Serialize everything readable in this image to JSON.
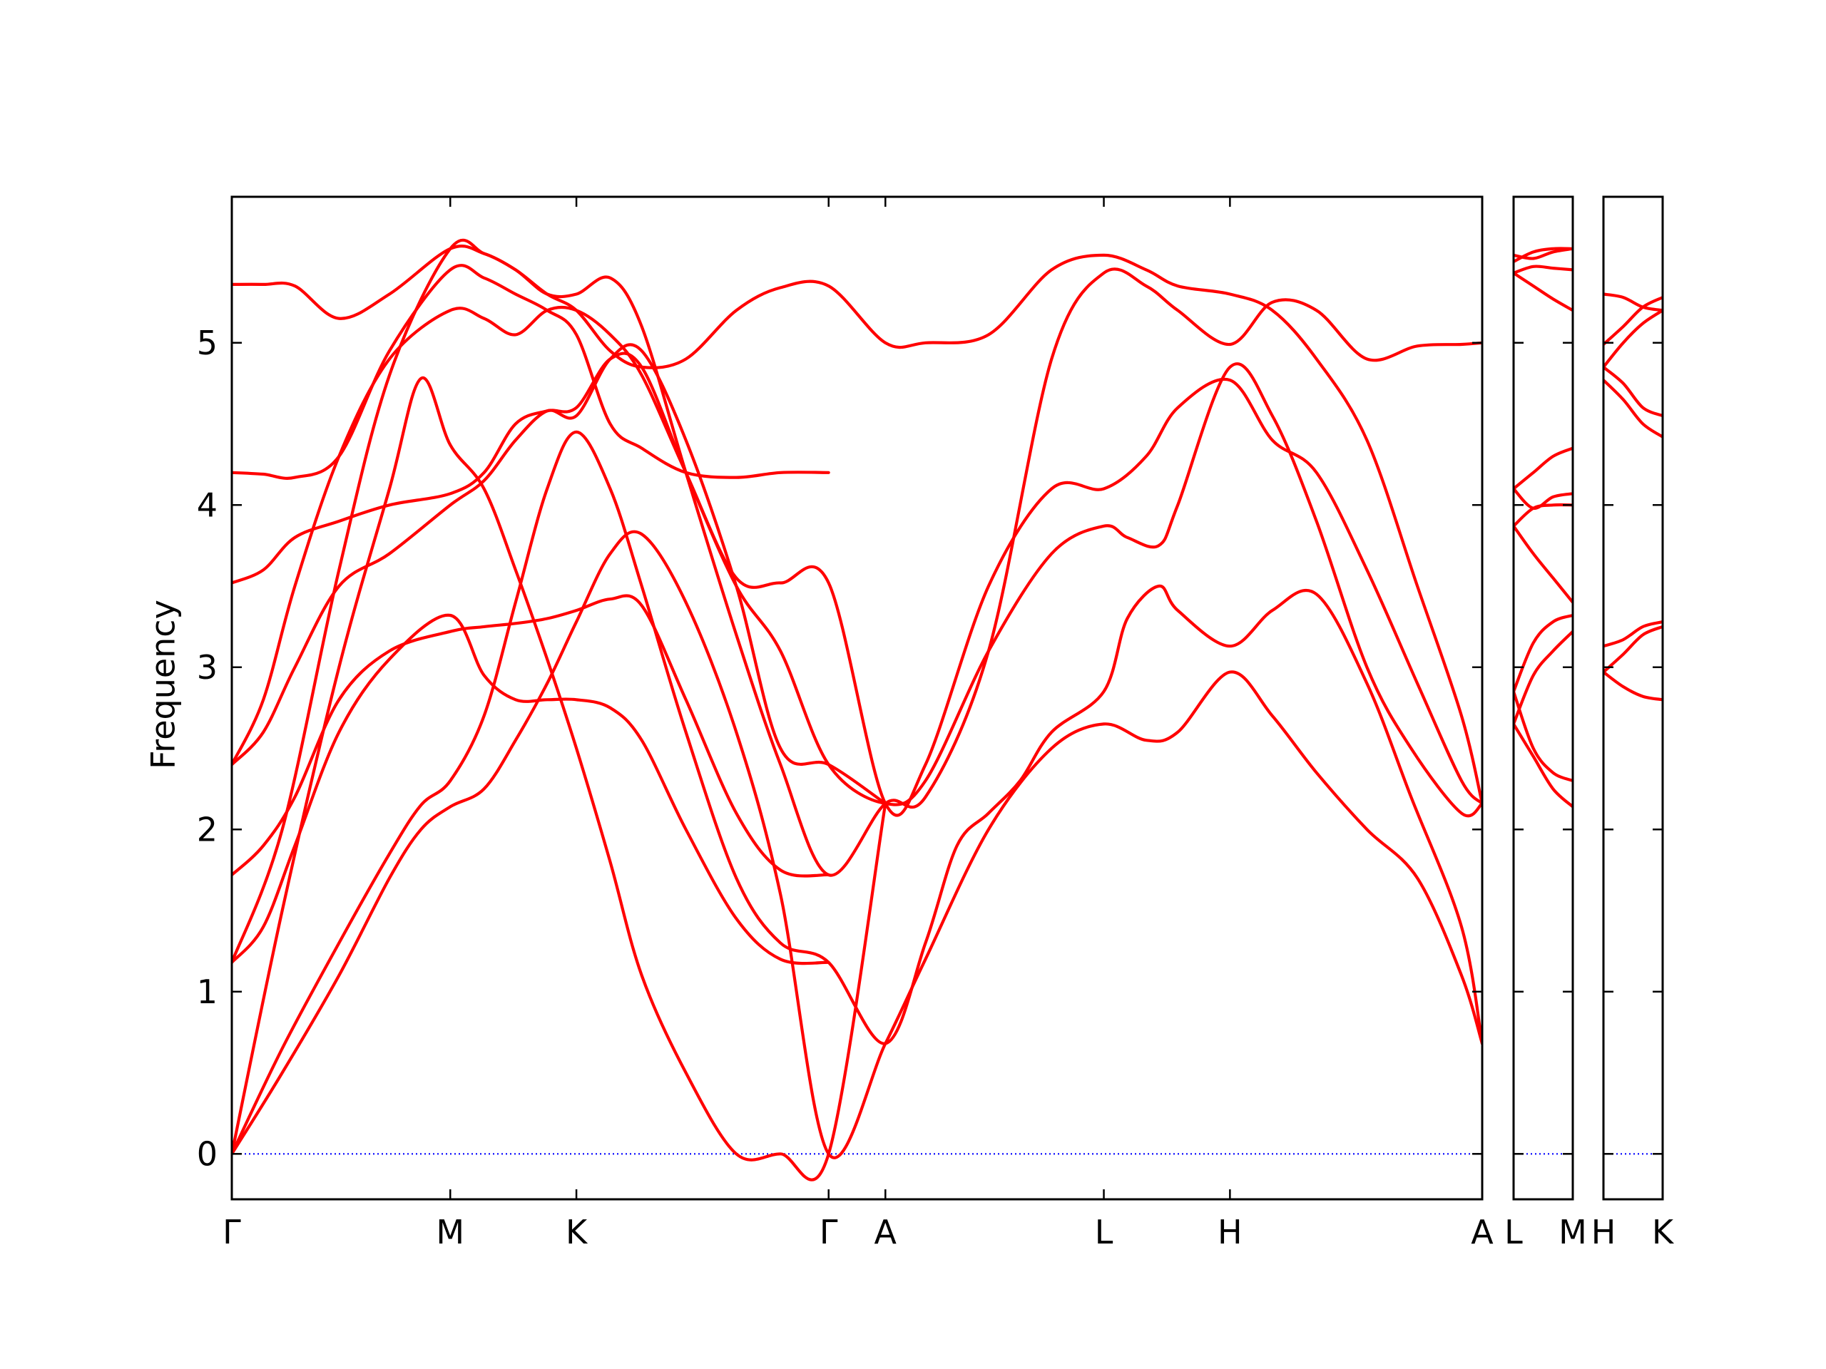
{
  "chart_data": {
    "type": "line",
    "ylabel": "Frequency",
    "ylim": [
      -0.28,
      5.9
    ],
    "y_ticks": [
      "0",
      "1",
      "2",
      "3",
      "4",
      "5"
    ],
    "y_tick_values": [
      0,
      1,
      2,
      3,
      4,
      5
    ],
    "grid": false,
    "legend": "none",
    "colors": {
      "bands": "#ff0000",
      "zero_line": "#0000ff",
      "axes": "#000000"
    },
    "panels": [
      {
        "segments": [
          "Γ-M",
          "M-K",
          "K-Γ",
          "Γ-A",
          "A-L",
          "L-H",
          "H-A"
        ],
        "x_ticks": [
          {
            "label": "Γ",
            "x": 0.0
          },
          {
            "label": "M",
            "x": 0.3464
          },
          {
            "label": "K",
            "x": 0.5464
          },
          {
            "label": "Γ",
            "x": 0.9464
          },
          {
            "label": "A",
            "x": 1.0364
          },
          {
            "label": "L",
            "x": 1.3828
          },
          {
            "label": "H",
            "x": 1.5828
          },
          {
            "label": "A",
            "x": 1.9828
          }
        ],
        "xlim": [
          0.0,
          1.9828
        ],
        "series": [
          {
            "x": [
              0.0,
              0.08,
              0.17,
              0.25,
              0.3,
              0.3464,
              0.4,
              0.45,
              0.5,
              0.5464,
              0.6,
              0.65,
              0.72,
              0.8,
              0.87,
              0.9464,
              1.0364,
              1.1,
              1.2,
              1.3,
              1.3828,
              1.45,
              1.5,
              1.5828,
              1.65,
              1.72,
              1.8,
              1.88,
              1.95,
              1.9828
            ],
            "y": [
              0.0,
              0.5,
              1.1,
              1.7,
              2.0,
              2.14,
              2.25,
              2.55,
              2.9,
              3.28,
              3.7,
              3.82,
              3.4,
              2.6,
              1.6,
              0.0,
              0.68,
              1.2,
              2.0,
              2.5,
              2.65,
              2.55,
              2.6,
              2.97,
              2.7,
              2.35,
              2.0,
              1.7,
              1.1,
              0.68
            ]
          },
          {
            "x": [
              0.0,
              0.08,
              0.17,
              0.25,
              0.3,
              0.3464,
              0.4,
              0.45,
              0.5,
              0.5464,
              0.6,
              0.65,
              0.72,
              0.8,
              0.87,
              0.9464,
              1.0364,
              1.1,
              1.15,
              1.2,
              1.25,
              1.3,
              1.3828,
              1.42,
              1.47,
              1.5,
              1.5828,
              1.65,
              1.72,
              1.8,
              1.87,
              1.95,
              1.9828
            ],
            "y": [
              0.0,
              0.65,
              1.3,
              1.85,
              2.15,
              2.3,
              2.7,
              3.4,
              4.1,
              4.45,
              4.1,
              3.5,
              2.6,
              1.7,
              1.3,
              1.18,
              0.68,
              1.3,
              1.9,
              2.1,
              2.3,
              2.6,
              2.85,
              3.3,
              3.5,
              3.35,
              3.13,
              3.35,
              3.45,
              2.9,
              2.2,
              1.4,
              0.68
            ]
          },
          {
            "x": [
              0.0,
              0.08,
              0.17,
              0.25,
              0.3,
              0.3464,
              0.4,
              0.45,
              0.5,
              0.5464,
              0.6,
              0.65,
              0.72,
              0.8,
              0.87,
              0.9464,
              1.0364
            ],
            "y": [
              0.0,
              1.5,
              3.0,
              4.1,
              4.78,
              4.37,
              4.1,
              3.6,
              3.05,
              2.5,
              1.8,
              1.1,
              0.5,
              0.0,
              0.0,
              0.0,
              2.16
            ]
          },
          {
            "x": [
              0.0,
              0.05,
              0.1,
              0.17,
              0.25,
              0.3464,
              0.4,
              0.45,
              0.5,
              0.5464,
              0.6,
              0.65,
              0.72,
              0.8,
              0.87,
              0.9464
            ],
            "y": [
              1.18,
              1.4,
              1.9,
              2.6,
              3.05,
              3.32,
              2.95,
              2.8,
              2.8,
              2.8,
              2.75,
              2.55,
              2.0,
              1.45,
              1.2,
              1.18
            ]
          },
          {
            "x": [
              0.0,
              0.05,
              0.1,
              0.17,
              0.25,
              0.3464,
              0.4,
              0.45,
              0.5,
              0.5464,
              0.6,
              0.65,
              0.72,
              0.8,
              0.87,
              0.9464
            ],
            "y": [
              1.72,
              1.9,
              2.2,
              2.8,
              3.1,
              3.22,
              3.25,
              3.27,
              3.3,
              3.35,
              3.42,
              3.38,
              2.8,
              2.1,
              1.75,
              1.72
            ]
          },
          {
            "x": [
              0.0,
              0.05,
              0.1,
              0.17,
              0.25,
              0.3464,
              0.4,
              0.45,
              0.5,
              0.5464,
              0.6,
              0.65,
              0.72,
              0.8,
              0.87,
              0.9464,
              1.0364
            ],
            "y": [
              2.4,
              2.6,
              3.0,
              3.5,
              3.7,
              4.0,
              4.15,
              4.4,
              4.58,
              4.55,
              4.9,
              4.95,
              4.4,
              3.5,
              2.5,
              2.4,
              2.16
            ]
          },
          {
            "x": [
              0.0,
              0.05,
              0.1,
              0.17,
              0.25,
              0.3464,
              0.4,
              0.45,
              0.5,
              0.5464,
              0.6,
              0.65,
              0.72,
              0.8,
              0.87,
              0.9464,
              1.0364,
              1.1,
              1.2,
              1.3,
              1.3828,
              1.42,
              1.47,
              1.5,
              1.5828,
              1.65,
              1.72,
              1.8,
              1.87,
              1.95,
              1.9828
            ],
            "y": [
              3.52,
              3.6,
              3.8,
              3.9,
              4.0,
              4.07,
              4.2,
              4.5,
              4.58,
              4.6,
              4.9,
              4.85,
              4.2,
              3.5,
              3.1,
              2.4,
              2.16,
              2.3,
              3.1,
              3.7,
              3.87,
              3.8,
              3.75,
              4.0,
              4.85,
              4.55,
              3.9,
              3.0,
              2.5,
              2.1,
              2.16
            ]
          },
          {
            "x": [
              0.0,
              0.05,
              0.1,
              0.17,
              0.25,
              0.3464,
              0.4,
              0.45,
              0.5,
              0.5464,
              0.6,
              0.65,
              0.72,
              0.8,
              0.87,
              0.9464,
              1.0364,
              1.1,
              1.2,
              1.3,
              1.3828,
              1.45,
              1.5,
              1.5828,
              1.65,
              1.72,
              1.8,
              1.88,
              1.95,
              1.9828
            ],
            "y": [
              2.4,
              2.8,
              3.5,
              4.3,
              4.9,
              5.2,
              5.15,
              5.05,
              5.2,
              5.2,
              5.05,
              4.8,
              4.2,
              3.55,
              3.52,
              3.52,
              2.16,
              2.4,
              3.5,
              4.1,
              4.1,
              4.3,
              4.6,
              4.77,
              4.4,
              4.2,
              3.6,
              2.9,
              2.3,
              2.16
            ]
          },
          {
            "x": [
              0.0,
              0.05,
              0.1,
              0.17,
              0.25,
              0.3464,
              0.4,
              0.45,
              0.5,
              0.5464,
              0.6,
              0.65,
              0.72,
              0.8,
              0.87,
              0.9464
            ],
            "y": [
              4.2,
              4.19,
              4.17,
              4.3,
              4.95,
              5.45,
              5.4,
              5.3,
              5.2,
              5.05,
              4.5,
              4.35,
              4.2,
              4.17,
              4.2,
              4.2
            ]
          },
          {
            "x": [
              0.0,
              0.05,
              0.1,
              0.17,
              0.25,
              0.3464,
              0.4,
              0.45,
              0.5,
              0.5464,
              0.6,
              0.65,
              0.72,
              0.8,
              0.87,
              0.9464,
              1.0364,
              1.1,
              1.2,
              1.3,
              1.3828,
              1.45,
              1.5,
              1.5828,
              1.65,
              1.72,
              1.8,
              1.88,
              1.95,
              1.9828
            ],
            "y": [
              5.36,
              5.36,
              5.35,
              5.15,
              5.3,
              5.58,
              5.55,
              5.45,
              5.3,
              5.2,
              4.95,
              4.85,
              4.9,
              5.2,
              5.34,
              5.35,
              5.0,
              5.0,
              5.05,
              5.45,
              5.54,
              5.45,
              5.35,
              5.3,
              5.2,
              4.9,
              4.4,
              3.5,
              2.7,
              2.16
            ]
          },
          {
            "x": [
              0.0,
              0.08,
              0.17,
              0.25,
              0.3464,
              0.4,
              0.45,
              0.5,
              0.5464,
              0.6,
              0.65,
              0.72,
              0.8,
              0.87,
              0.9464,
              1.0364,
              1.1,
              1.2,
              1.3,
              1.3828,
              1.45,
              1.5,
              1.5828,
              1.65,
              1.72,
              1.8,
              1.88,
              1.95,
              1.9828
            ],
            "y": [
              1.18,
              2.0,
              3.6,
              4.8,
              5.58,
              5.55,
              5.45,
              5.3,
              5.3,
              5.4,
              5.1,
              4.2,
              3.2,
              2.4,
              1.72,
              2.16,
              2.2,
              3.1,
              4.9,
              5.43,
              5.35,
              5.2,
              4.99,
              5.25,
              5.2,
              4.9,
              4.98,
              4.99,
              5.0
            ]
          }
        ]
      },
      {
        "segments": [
          "L-M"
        ],
        "x_ticks": [
          {
            "label": "L",
            "x": 0.0
          },
          {
            "label": "M",
            "x": 0.09
          }
        ],
        "xlim": [
          0.0,
          0.09
        ],
        "series": [
          {
            "x": [
              0.0,
              0.03,
              0.06,
              0.09
            ],
            "y": [
              2.65,
              2.45,
              2.25,
              2.14
            ]
          },
          {
            "x": [
              0.0,
              0.03,
              0.06,
              0.09
            ],
            "y": [
              2.85,
              2.5,
              2.35,
              2.3
            ]
          },
          {
            "x": [
              0.0,
              0.03,
              0.06,
              0.09
            ],
            "y": [
              2.65,
              2.95,
              3.1,
              3.22
            ]
          },
          {
            "x": [
              0.0,
              0.03,
              0.06,
              0.09
            ],
            "y": [
              2.85,
              3.15,
              3.28,
              3.32
            ]
          },
          {
            "x": [
              0.0,
              0.03,
              0.06,
              0.09
            ],
            "y": [
              3.87,
              3.7,
              3.55,
              3.4
            ]
          },
          {
            "x": [
              0.0,
              0.03,
              0.06,
              0.09
            ],
            "y": [
              3.87,
              3.98,
              4.0,
              4.0
            ]
          },
          {
            "x": [
              0.0,
              0.03,
              0.06,
              0.09
            ],
            "y": [
              4.1,
              3.98,
              4.05,
              4.07
            ]
          },
          {
            "x": [
              0.0,
              0.03,
              0.06,
              0.09
            ],
            "y": [
              4.1,
              4.2,
              4.3,
              4.35
            ]
          },
          {
            "x": [
              0.0,
              0.03,
              0.06,
              0.09
            ],
            "y": [
              5.43,
              5.35,
              5.27,
              5.2
            ]
          },
          {
            "x": [
              0.0,
              0.03,
              0.06,
              0.09
            ],
            "y": [
              5.43,
              5.47,
              5.46,
              5.45
            ]
          },
          {
            "x": [
              0.0,
              0.03,
              0.06,
              0.09
            ],
            "y": [
              5.54,
              5.52,
              5.56,
              5.58
            ]
          },
          {
            "x": [
              0.0,
              0.03,
              0.06,
              0.09
            ],
            "y": [
              5.5,
              5.56,
              5.58,
              5.58
            ]
          }
        ]
      },
      {
        "segments": [
          "H-K"
        ],
        "x_ticks": [
          {
            "label": "H",
            "x": 0.0
          },
          {
            "label": "K",
            "x": 0.09
          }
        ],
        "xlim": [
          0.0,
          0.09
        ],
        "series": [
          {
            "x": [
              0.0,
              0.03,
              0.06,
              0.09
            ],
            "y": [
              2.97,
              2.88,
              2.82,
              2.8
            ]
          },
          {
            "x": [
              0.0,
              0.03,
              0.06,
              0.09
            ],
            "y": [
              2.97,
              3.08,
              3.2,
              3.25
            ]
          },
          {
            "x": [
              0.0,
              0.03,
              0.06,
              0.09
            ],
            "y": [
              3.13,
              3.17,
              3.25,
              3.28
            ]
          },
          {
            "x": [
              0.0,
              0.03,
              0.06,
              0.09
            ],
            "y": [
              4.77,
              4.65,
              4.5,
              4.42
            ]
          },
          {
            "x": [
              0.0,
              0.03,
              0.06,
              0.09
            ],
            "y": [
              4.85,
              4.75,
              4.6,
              4.55
            ]
          },
          {
            "x": [
              0.0,
              0.03,
              0.06,
              0.09
            ],
            "y": [
              4.99,
              5.1,
              5.22,
              5.28
            ]
          },
          {
            "x": [
              0.0,
              0.03,
              0.06,
              0.09
            ],
            "y": [
              4.85,
              5.0,
              5.12,
              5.2
            ]
          },
          {
            "x": [
              0.0,
              0.03,
              0.06,
              0.09
            ],
            "y": [
              5.3,
              5.28,
              5.22,
              5.2
            ]
          }
        ]
      }
    ]
  }
}
